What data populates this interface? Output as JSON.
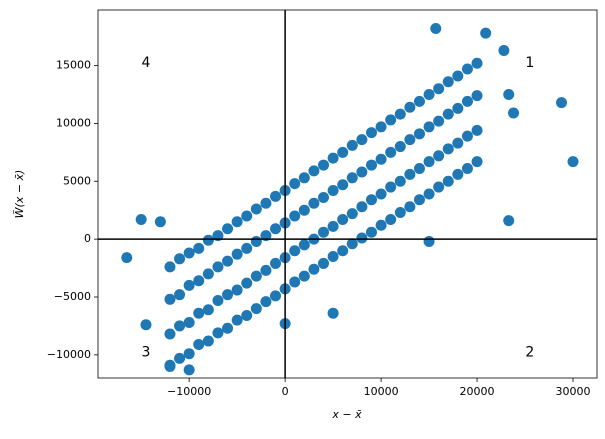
{
  "chart_data": {
    "type": "scatter",
    "xlabel": "x − x̄",
    "ylabel": "W̃(x − x̄)",
    "xlim": [
      -19500,
      32500
    ],
    "ylim": [
      -12000,
      19800
    ],
    "xticks": [
      {
        "value": -10000,
        "label": "−10000"
      },
      0,
      10000,
      20000,
      30000
    ],
    "yticks": [
      {
        "value": -10000,
        "label": "−10000"
      },
      {
        "value": -5000,
        "label": "−5000"
      },
      0,
      5000,
      10000,
      15000
    ],
    "hlines": [
      0
    ],
    "vlines": [
      0
    ],
    "color": "#1f77b4",
    "annotations": [
      {
        "text": "4",
        "x": -14500,
        "y": 15200
      },
      {
        "text": "1",
        "x": 25500,
        "y": 15200
      },
      {
        "text": "3",
        "x": -14500,
        "y": -9800
      },
      {
        "text": "2",
        "x": 25500,
        "y": -9800
      }
    ],
    "x": [
      -12000,
      -12000,
      -12000,
      -12000,
      -11000,
      -11000,
      -11000,
      -11000,
      -10000,
      -10000,
      -10000,
      -10000,
      -9000,
      -9000,
      -9000,
      -9000,
      -8000,
      -8000,
      -8000,
      -8000,
      -7000,
      -7000,
      -7000,
      -7000,
      -6000,
      -6000,
      -6000,
      -6000,
      -5000,
      -5000,
      -5000,
      -5000,
      -4000,
      -4000,
      -4000,
      -4000,
      -3000,
      -3000,
      -3000,
      -3000,
      -2000,
      -2000,
      -2000,
      -2000,
      -1000,
      -1000,
      -1000,
      -1000,
      0,
      0,
      0,
      0,
      1000,
      1000,
      1000,
      1000,
      2000,
      2000,
      2000,
      2000,
      3000,
      3000,
      3000,
      3000,
      4000,
      4000,
      4000,
      4000,
      5000,
      5000,
      5000,
      5000,
      6000,
      6000,
      6000,
      6000,
      7000,
      7000,
      7000,
      7000,
      8000,
      8000,
      8000,
      8000,
      9000,
      9000,
      9000,
      9000,
      10000,
      10000,
      10000,
      10000,
      11000,
      11000,
      11000,
      11000,
      12000,
      12000,
      12000,
      12000,
      13000,
      13000,
      13000,
      13000,
      14000,
      14000,
      14000,
      14000,
      15000,
      15000,
      15000,
      15000,
      16000,
      16000,
      16000,
      16000,
      17000,
      17000,
      17000,
      17000,
      18000,
      18000,
      18000,
      18000,
      19000,
      19000,
      19000,
      19000,
      20000,
      20000,
      20000,
      20000,
      30000,
      28800,
      23300,
      -16500,
      -15000,
      -14500,
      -13000,
      15700,
      20900,
      22800,
      23300,
      23800,
      15000,
      -12000,
      0,
      5000,
      -10000
    ],
    "y": [
      -10900,
      -8200,
      -5200,
      -2400,
      -10300,
      -7500,
      -4800,
      -1700,
      -9900,
      -7200,
      -4000,
      -1200,
      -9100,
      -6400,
      -3600,
      -800,
      -8800,
      -6100,
      -3000,
      -100,
      -8100,
      -5300,
      -2400,
      300,
      -7700,
      -4800,
      -1900,
      900,
      -7000,
      -4400,
      -1300,
      1500,
      -6600,
      -3800,
      -800,
      2000,
      -6000,
      -3200,
      -200,
      2600,
      -5400,
      -2700,
      300,
      3100,
      -4900,
      -2100,
      900,
      3700,
      -4300,
      -1600,
      1400,
      4200,
      -3700,
      -1000,
      2000,
      4800,
      -3200,
      -500,
      2500,
      5300,
      -2600,
      0,
      3100,
      5900,
      -2100,
      600,
      3600,
      6400,
      -1500,
      1100,
      4200,
      7000,
      -1000,
      1700,
      4700,
      7500,
      -400,
      2200,
      5300,
      8100,
      100,
      2800,
      5800,
      8600,
      600,
      3400,
      6400,
      9200,
      1200,
      3900,
      6900,
      9700,
      1700,
      4500,
      7500,
      10300,
      2300,
      5000,
      8000,
      10800,
      2800,
      5600,
      8600,
      11400,
      3400,
      6100,
      9100,
      11900,
      3900,
      6700,
      9700,
      12500,
      4500,
      7200,
      10200,
      13000,
      5000,
      7800,
      10800,
      13600,
      5600,
      8300,
      11300,
      14100,
      6100,
      8900,
      11900,
      14700,
      6700,
      9400,
      12400,
      15200,
      6700,
      11800,
      1600,
      -1600,
      1700,
      -7400,
      1500,
      18200,
      17800,
      16300,
      12500,
      10900,
      -200,
      -11000,
      -7300,
      -6400,
      -11300
    ]
  }
}
